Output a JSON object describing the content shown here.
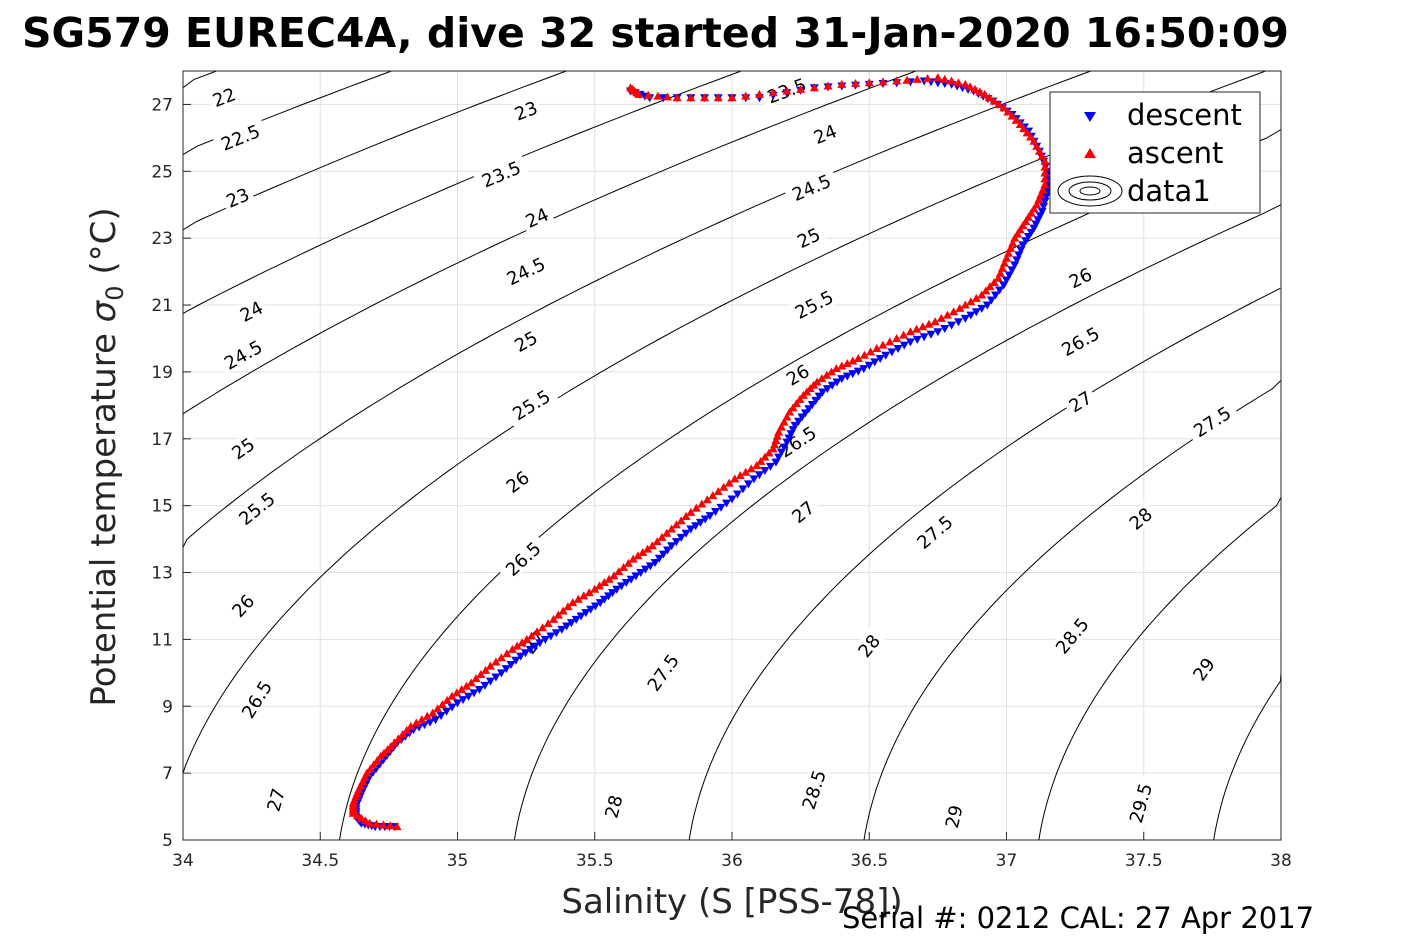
{
  "title": "SG579 EUREC4A, dive 32 started 31-Jan-2020 16:50:09",
  "footer": "Serial #: 0212  CAL: 27 Apr 2017",
  "chart_data": {
    "type": "scatter",
    "xlabel": "Salinity (S [PSS-78])",
    "ylabel": "Potential temperature σ₀ (°C)",
    "ylabel_main": "Potential temperature ",
    "ylabel_sym": "σ",
    "ylabel_sub": "0",
    "ylabel_unit": " (°C)",
    "xlim": [
      34,
      38
    ],
    "ylim": [
      5,
      28
    ],
    "xticks": [
      "34",
      "34.5",
      "35",
      "35.5",
      "36",
      "36.5",
      "37",
      "37.5",
      "38"
    ],
    "yticks": [
      "5",
      "7",
      "9",
      "11",
      "13",
      "15",
      "17",
      "19",
      "21",
      "23",
      "25",
      "27"
    ],
    "grid": true,
    "legend_position": "top-right",
    "legend": [
      "descent",
      "ascent",
      "data1"
    ],
    "colors": {
      "descent": "#0000ff",
      "ascent": "#ff0000",
      "contour": "#000000"
    },
    "isopycnals": {
      "levels": [
        22,
        22.5,
        23,
        23.5,
        24,
        24.5,
        25,
        25.5,
        26,
        26.5,
        27,
        27.5,
        28,
        28.5,
        29,
        29.5
      ],
      "labels": [
        {
          "text": "22",
          "s": 34.15,
          "t": 27.2
        },
        {
          "text": "22.5",
          "s": 34.21,
          "t": 26.0
        },
        {
          "text": "23",
          "s": 34.2,
          "t": 24.2
        },
        {
          "text": "23",
          "s": 35.25,
          "t": 26.8
        },
        {
          "text": "23.5",
          "s": 35.16,
          "t": 24.9
        },
        {
          "text": "23.5",
          "s": 36.2,
          "t": 27.4
        },
        {
          "text": "24",
          "s": 34.25,
          "t": 20.8
        },
        {
          "text": "24",
          "s": 35.29,
          "t": 23.6
        },
        {
          "text": "24",
          "s": 36.34,
          "t": 26.1
        },
        {
          "text": "24.5",
          "s": 34.22,
          "t": 19.5
        },
        {
          "text": "24.5",
          "s": 35.25,
          "t": 22.0
        },
        {
          "text": "24.5",
          "s": 36.29,
          "t": 24.5
        },
        {
          "text": "25",
          "s": 34.22,
          "t": 16.7
        },
        {
          "text": "25",
          "s": 35.25,
          "t": 19.9
        },
        {
          "text": "25",
          "s": 36.28,
          "t": 23.0
        },
        {
          "text": "25.5",
          "s": 34.27,
          "t": 14.9
        },
        {
          "text": "25.5",
          "s": 35.27,
          "t": 18.0
        },
        {
          "text": "25.5",
          "s": 36.3,
          "t": 21.0
        },
        {
          "text": "26",
          "s": 34.22,
          "t": 12.0
        },
        {
          "text": "26",
          "s": 35.22,
          "t": 15.7
        },
        {
          "text": "26",
          "s": 36.24,
          "t": 18.9
        },
        {
          "text": "26",
          "s": 37.27,
          "t": 21.8
        },
        {
          "text": "26.5",
          "s": 34.27,
          "t": 9.2
        },
        {
          "text": "26.5",
          "s": 35.24,
          "t": 13.4
        },
        {
          "text": "26.5",
          "s": 36.24,
          "t": 16.9
        },
        {
          "text": "26.5",
          "s": 37.27,
          "t": 19.9
        },
        {
          "text": "27",
          "s": 34.34,
          "t": 6.2
        },
        {
          "text": "27",
          "s": 35.28,
          "t": 10.9
        },
        {
          "text": "27",
          "s": 36.26,
          "t": 14.8
        },
        {
          "text": "27",
          "s": 37.27,
          "t": 18.1
        },
        {
          "text": "27.5",
          "s": 35.75,
          "t": 10.0
        },
        {
          "text": "27.5",
          "s": 36.74,
          "t": 14.2
        },
        {
          "text": "27.5",
          "s": 37.75,
          "t": 17.5
        },
        {
          "text": "28",
          "s": 35.57,
          "t": 6.0
        },
        {
          "text": "28",
          "s": 36.5,
          "t": 10.8
        },
        {
          "text": "28",
          "s": 37.49,
          "t": 14.6
        },
        {
          "text": "28.5",
          "s": 36.3,
          "t": 6.5
        },
        {
          "text": "28.5",
          "s": 37.24,
          "t": 11.1
        },
        {
          "text": "29",
          "s": 36.81,
          "t": 5.7
        },
        {
          "text": "29",
          "s": 37.72,
          "t": 10.1
        },
        {
          "text": "29.5",
          "s": 37.49,
          "t": 6.1
        }
      ]
    },
    "series": [
      {
        "name": "descent",
        "marker": "triangle-down",
        "points": [
          [
            34.77,
            5.4
          ],
          [
            34.7,
            5.4
          ],
          [
            34.65,
            5.5
          ],
          [
            34.63,
            5.7
          ],
          [
            34.63,
            6.0
          ],
          [
            34.65,
            6.4
          ],
          [
            34.68,
            6.9
          ],
          [
            34.73,
            7.4
          ],
          [
            34.78,
            7.9
          ],
          [
            34.84,
            8.3
          ],
          [
            34.92,
            8.6
          ],
          [
            35.0,
            9.1
          ],
          [
            35.08,
            9.5
          ],
          [
            35.16,
            10.0
          ],
          [
            35.23,
            10.5
          ],
          [
            35.3,
            10.9
          ],
          [
            35.38,
            11.3
          ],
          [
            35.45,
            11.7
          ],
          [
            35.52,
            12.1
          ],
          [
            35.58,
            12.5
          ],
          [
            35.65,
            12.9
          ],
          [
            35.72,
            13.3
          ],
          [
            35.78,
            13.8
          ],
          [
            35.85,
            14.3
          ],
          [
            35.92,
            14.7
          ],
          [
            36.0,
            15.2
          ],
          [
            36.08,
            15.8
          ],
          [
            36.16,
            16.3
          ],
          [
            36.2,
            16.9
          ],
          [
            36.23,
            17.4
          ],
          [
            36.28,
            17.9
          ],
          [
            36.33,
            18.4
          ],
          [
            36.4,
            18.8
          ],
          [
            36.48,
            19.1
          ],
          [
            36.56,
            19.5
          ],
          [
            36.65,
            19.9
          ],
          [
            36.75,
            20.2
          ],
          [
            36.85,
            20.6
          ],
          [
            36.93,
            21.0
          ],
          [
            36.99,
            21.6
          ],
          [
            37.03,
            22.2
          ],
          [
            37.06,
            22.8
          ],
          [
            37.1,
            23.3
          ],
          [
            37.13,
            23.8
          ],
          [
            37.15,
            24.4
          ],
          [
            37.15,
            25.0
          ],
          [
            37.12,
            25.6
          ],
          [
            37.08,
            26.2
          ],
          [
            37.02,
            26.7
          ],
          [
            36.95,
            27.1
          ],
          [
            36.88,
            27.4
          ],
          [
            36.8,
            27.6
          ],
          [
            36.7,
            27.7
          ],
          [
            36.5,
            27.6
          ],
          [
            36.3,
            27.5
          ],
          [
            36.1,
            27.2
          ],
          [
            35.9,
            27.2
          ],
          [
            35.7,
            27.2
          ],
          [
            35.63,
            27.4
          ]
        ]
      },
      {
        "name": "ascent",
        "marker": "triangle-up",
        "points": [
          [
            34.78,
            5.4
          ],
          [
            34.68,
            5.5
          ],
          [
            34.62,
            5.8
          ],
          [
            34.62,
            6.1
          ],
          [
            34.64,
            6.5
          ],
          [
            34.67,
            7.0
          ],
          [
            34.72,
            7.5
          ],
          [
            34.77,
            7.9
          ],
          [
            34.83,
            8.4
          ],
          [
            34.91,
            8.8
          ],
          [
            34.98,
            9.3
          ],
          [
            35.05,
            9.7
          ],
          [
            35.12,
            10.2
          ],
          [
            35.2,
            10.7
          ],
          [
            35.27,
            11.1
          ],
          [
            35.35,
            11.6
          ],
          [
            35.42,
            12.1
          ],
          [
            35.5,
            12.5
          ],
          [
            35.57,
            12.9
          ],
          [
            35.64,
            13.4
          ],
          [
            35.71,
            13.8
          ],
          [
            35.78,
            14.3
          ],
          [
            35.85,
            14.8
          ],
          [
            35.93,
            15.3
          ],
          [
            36.01,
            15.8
          ],
          [
            36.09,
            16.2
          ],
          [
            36.15,
            16.7
          ],
          [
            36.17,
            17.2
          ],
          [
            36.21,
            17.8
          ],
          [
            36.26,
            18.3
          ],
          [
            36.31,
            18.7
          ],
          [
            36.38,
            19.1
          ],
          [
            36.46,
            19.4
          ],
          [
            36.55,
            19.8
          ],
          [
            36.65,
            20.2
          ],
          [
            36.74,
            20.5
          ],
          [
            36.83,
            20.9
          ],
          [
            36.91,
            21.3
          ],
          [
            36.97,
            21.8
          ],
          [
            37.0,
            22.4
          ],
          [
            37.03,
            23.0
          ],
          [
            37.07,
            23.5
          ],
          [
            37.11,
            24.0
          ],
          [
            37.14,
            24.6
          ],
          [
            37.14,
            25.3
          ],
          [
            37.1,
            25.9
          ],
          [
            37.05,
            26.4
          ],
          [
            36.99,
            26.9
          ],
          [
            36.92,
            27.3
          ],
          [
            36.85,
            27.6
          ],
          [
            36.75,
            27.8
          ],
          [
            36.6,
            27.7
          ],
          [
            36.4,
            27.6
          ],
          [
            36.2,
            27.4
          ],
          [
            36.0,
            27.2
          ],
          [
            35.8,
            27.2
          ],
          [
            35.66,
            27.3
          ],
          [
            35.63,
            27.5
          ]
        ]
      }
    ]
  }
}
